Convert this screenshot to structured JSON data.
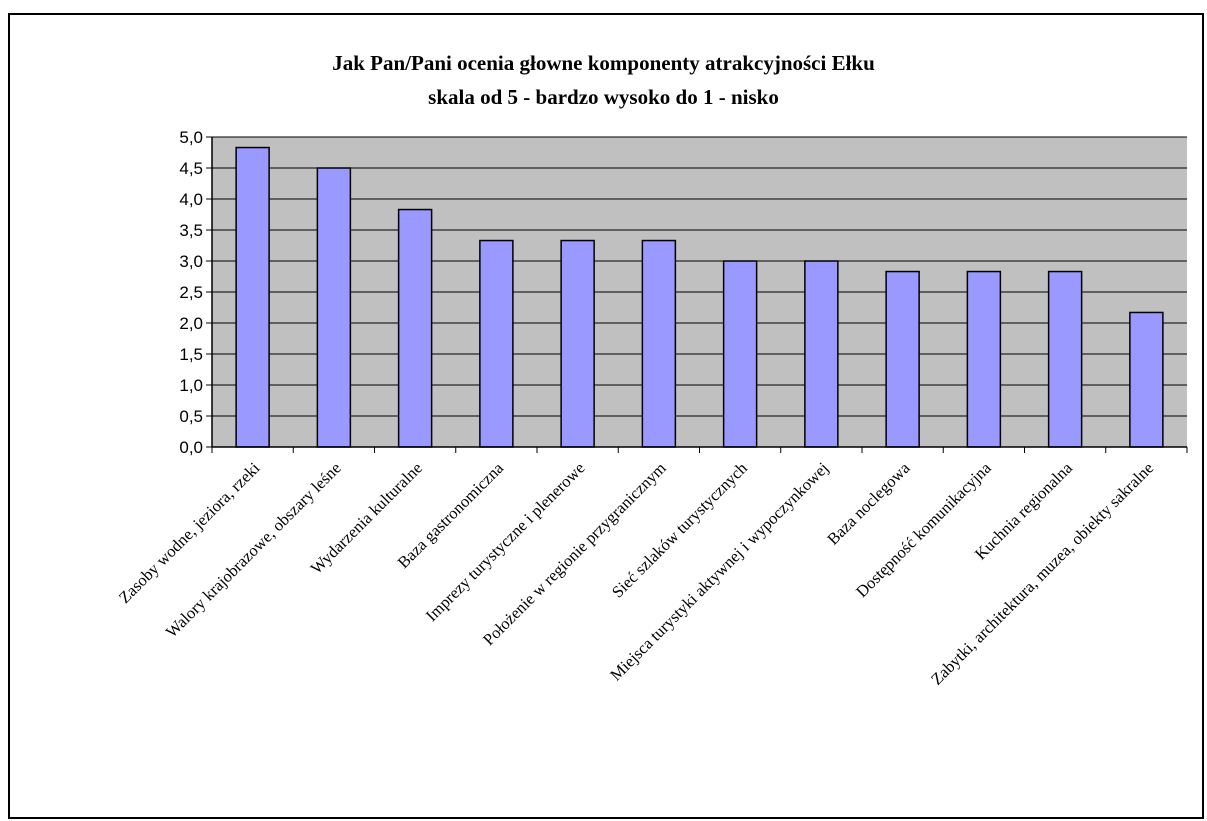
{
  "chart_data": {
    "type": "bar",
    "title": "Jak Pan/Pani ocenia głowne komponenty atrakcyjności Ełku",
    "subtitle": "skala od 5 - bardzo wysoko do 1 - nisko",
    "categories": [
      "Zasoby wodne, jeziora, rzeki",
      "Walory krajobrazowe, obszary leśne",
      "Wydarzenia kulturalne",
      "Baza gastronomiczna",
      "Imprezy turystyczne i plenerowe",
      "Położenie w regionie przygranicznym",
      "Sieć szlaków turystycznych",
      "Miejsca turystyki aktywnej i wypoczynkowej",
      "Baza noclegowa",
      "Dostępność komunikacyjna",
      "Kuchnia regionalna",
      "Zabytki, architektura, muzea, obiekty sakralne"
    ],
    "values": [
      4.83,
      4.5,
      3.83,
      3.33,
      3.33,
      3.33,
      3.0,
      3.0,
      2.83,
      2.83,
      2.83,
      2.17
    ],
    "ylim": [
      0,
      5
    ],
    "yticks": [
      "0,0",
      "0,5",
      "1,0",
      "1,5",
      "2,0",
      "2,5",
      "3,0",
      "3,5",
      "4,0",
      "4,5",
      "5,0"
    ],
    "grid": true,
    "legend": "none",
    "colors": {
      "plot_background": "#c0c0c0",
      "bar_fill": "#9999ff",
      "bar_stroke": "#000000",
      "gridline": "#000000"
    }
  }
}
